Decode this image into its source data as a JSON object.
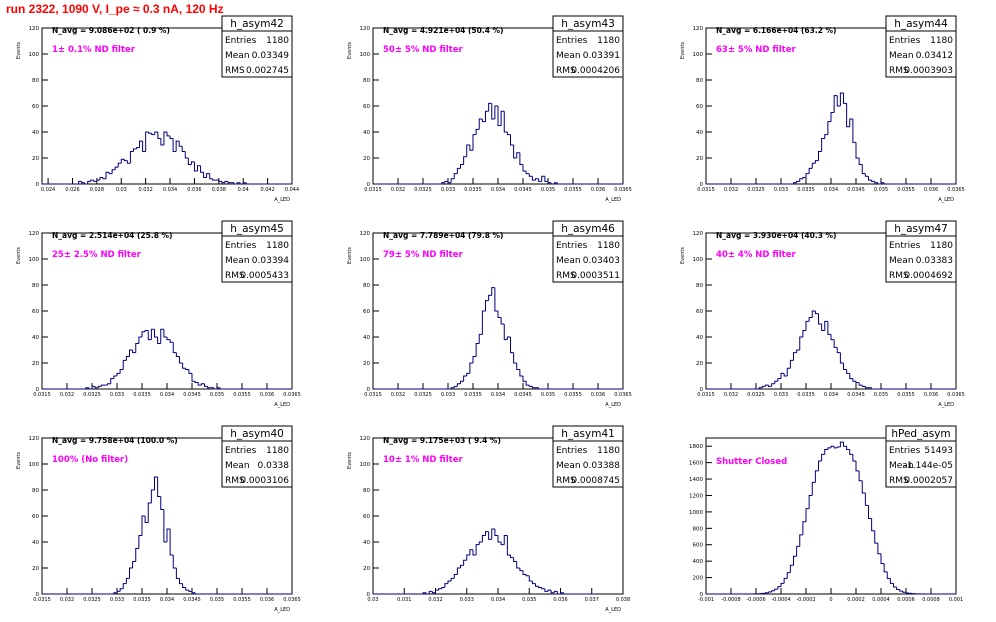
{
  "page": {
    "run_title": "run 2322,  1090 V, I_pe ≈ 0.3 nA, 120 Hz"
  },
  "colors": {
    "histogram": "#000080",
    "ylabel_annotation": "#ff00ff",
    "title": "#ff0000",
    "nd_text": "#ff00ff"
  },
  "chart_data": [
    {
      "type": "bar",
      "name": "h_asym42",
      "stats": {
        "entries_label": "Entries",
        "entries": "1180",
        "mean_label": "Mean",
        "mean": "0.03349",
        "rms_label": "RMS",
        "rms": "0.002745"
      },
      "navg": "N_avg = 9.086e+02 ( 0.9 %)",
      "filter": "1± 0.1% ND filter",
      "xlabel": "A_LED",
      "ylabel": "Events",
      "xlim": [
        0.0235,
        0.044
      ],
      "ylim": [
        0,
        120
      ],
      "xticks": [
        0.024,
        0.026,
        0.028,
        0.03,
        0.032,
        0.034,
        0.036,
        0.038,
        0.04,
        0.042,
        0.044
      ],
      "xticklabels": [
        "0.024",
        "0.026",
        "0.028",
        "0.03",
        "0.032",
        "0.034",
        "0.036",
        "0.038",
        "0.04",
        "0.042",
        "0.044"
      ],
      "yticks": [
        0,
        20,
        40,
        60,
        80,
        100,
        120
      ],
      "yticklabels": [
        "0",
        "20",
        "40",
        "60",
        "80",
        "100",
        "120"
      ],
      "bin_start": 0.0235,
      "bin_width": 0.00025,
      "values": [
        0,
        0,
        0,
        0,
        0,
        0,
        0,
        0,
        0,
        0,
        0,
        0,
        2,
        1,
        0,
        2,
        3,
        2,
        3,
        5,
        4,
        9,
        8,
        11,
        13,
        16,
        19,
        18,
        16,
        25,
        27,
        28,
        33,
        25,
        40,
        39,
        38,
        40,
        35,
        30,
        40,
        37,
        35,
        25,
        33,
        29,
        25,
        20,
        15,
        17,
        10,
        14,
        9,
        5,
        8,
        4,
        3,
        3,
        2,
        1,
        2,
        1,
        1,
        0,
        1,
        0,
        1,
        0,
        0,
        0,
        0,
        0,
        0,
        0,
        0,
        0,
        0,
        0,
        0,
        0,
        0,
        0
      ]
    },
    {
      "type": "bar",
      "name": "h_asym43",
      "stats": {
        "entries_label": "Entries",
        "entries": "1180",
        "mean_label": "Mean",
        "mean": "0.03391",
        "rms_label": "RMS",
        "rms": "0.0004206"
      },
      "navg": "N_avg = 4.921e+04 (50.4 %)",
      "filter": "50± 5% ND filter",
      "xlabel": "A_LED",
      "ylabel": "Events",
      "xlim": [
        0.0315,
        0.0365
      ],
      "ylim": [
        0,
        120
      ],
      "xticks": [
        0.0315,
        0.032,
        0.0325,
        0.033,
        0.0335,
        0.034,
        0.0345,
        0.035,
        0.0355,
        0.036,
        0.0365
      ],
      "xticklabels": [
        "0.0315",
        "0.032",
        "0.0325",
        "0.033",
        "0.0335",
        "0.034",
        "0.0345",
        "0.035",
        "0.0355",
        "0.036",
        "0.0365"
      ],
      "yticks": [
        0,
        20,
        40,
        60,
        80,
        100,
        120
      ],
      "yticklabels": [
        "0",
        "20",
        "40",
        "60",
        "80",
        "100",
        "120"
      ],
      "bin_start": 0.0315,
      "bin_width": 6.25e-05,
      "values": [
        0,
        0,
        0,
        0,
        0,
        0,
        0,
        0,
        0,
        0,
        0,
        0,
        0,
        0,
        0,
        0,
        0,
        0,
        0,
        0,
        0,
        0,
        1,
        2,
        1,
        4,
        8,
        12,
        15,
        21,
        30,
        26,
        38,
        42,
        50,
        48,
        56,
        62,
        50,
        60,
        45,
        56,
        40,
        38,
        30,
        20,
        24,
        15,
        10,
        8,
        6,
        3,
        4,
        2,
        6,
        2,
        1,
        0,
        1,
        0,
        0,
        0,
        0,
        0,
        0,
        0,
        0,
        0,
        0,
        0,
        0,
        0,
        0,
        0,
        0,
        0,
        0,
        0,
        0,
        0
      ]
    },
    {
      "type": "bar",
      "name": "h_asym44",
      "stats": {
        "entries_label": "Entries",
        "entries": "1180",
        "mean_label": "Mean",
        "mean": "0.03412",
        "rms_label": "RMS",
        "rms": "0.0003903"
      },
      "navg": "N_avg = 6.166e+04 (63.2 %)",
      "filter": "63± 5% ND filter",
      "xlabel": "A_LED",
      "ylabel": "Events",
      "xlim": [
        0.0315,
        0.0365
      ],
      "ylim": [
        0,
        120
      ],
      "xticks": [
        0.0315,
        0.032,
        0.0325,
        0.033,
        0.0335,
        0.034,
        0.0345,
        0.035,
        0.0355,
        0.036,
        0.0365
      ],
      "xticklabels": [
        "0.0315",
        "0.032",
        "0.0325",
        "0.033",
        "0.0335",
        "0.034",
        "0.0345",
        "0.035",
        "0.0355",
        "0.036",
        "0.0365"
      ],
      "yticks": [
        0,
        20,
        40,
        60,
        80,
        100,
        120
      ],
      "yticklabels": [
        "0",
        "20",
        "40",
        "60",
        "80",
        "100",
        "120"
      ],
      "bin_start": 0.0315,
      "bin_width": 6.25e-05,
      "values": [
        0,
        0,
        0,
        0,
        0,
        0,
        0,
        0,
        0,
        0,
        0,
        0,
        0,
        0,
        0,
        0,
        0,
        0,
        0,
        0,
        0,
        0,
        0,
        0,
        0,
        0,
        0,
        0,
        1,
        2,
        4,
        5,
        8,
        12,
        16,
        18,
        25,
        35,
        38,
        48,
        55,
        68,
        60,
        70,
        62,
        44,
        50,
        32,
        20,
        15,
        8,
        6,
        3,
        2,
        1,
        0,
        1,
        0,
        0,
        0,
        0,
        0,
        0,
        0,
        0,
        0,
        0,
        0,
        0,
        0,
        0,
        0,
        0,
        0,
        0,
        0,
        0,
        0,
        0,
        0
      ]
    },
    {
      "type": "bar",
      "name": "h_asym45",
      "stats": {
        "entries_label": "Entries",
        "entries": "1180",
        "mean_label": "Mean",
        "mean": "0.03394",
        "rms_label": "RMS",
        "rms": "0.0005433"
      },
      "navg": "N_avg = 2.514e+04 (25.8 %)",
      "filter": "25± 2.5% ND filter",
      "xlabel": "A_LED",
      "ylabel": "Events",
      "xlim": [
        0.0315,
        0.0365
      ],
      "ylim": [
        0,
        120
      ],
      "xticks": [
        0.0315,
        0.032,
        0.0325,
        0.033,
        0.0335,
        0.034,
        0.0345,
        0.035,
        0.0355,
        0.036,
        0.0365
      ],
      "xticklabels": [
        "0.0315",
        "0.032",
        "0.0325",
        "0.033",
        "0.0335",
        "0.034",
        "0.0345",
        "0.035",
        "0.0355",
        "0.036",
        "0.0365"
      ],
      "yticks": [
        0,
        20,
        40,
        60,
        80,
        100,
        120
      ],
      "yticklabels": [
        "0",
        "20",
        "40",
        "60",
        "80",
        "100",
        "120"
      ],
      "bin_start": 0.0315,
      "bin_width": 6.25e-05,
      "values": [
        0,
        0,
        0,
        0,
        0,
        0,
        0,
        0,
        0,
        0,
        0,
        0,
        0,
        0,
        1,
        0,
        2,
        1,
        2,
        3,
        3,
        4,
        8,
        10,
        12,
        15,
        22,
        25,
        30,
        28,
        35,
        40,
        44,
        45,
        38,
        46,
        40,
        35,
        46,
        40,
        38,
        36,
        28,
        25,
        20,
        16,
        15,
        12,
        6,
        5,
        3,
        4,
        2,
        1,
        1,
        0,
        1,
        0,
        0,
        0,
        0,
        0,
        0,
        0,
        0,
        0,
        0,
        0,
        0,
        0,
        0,
        0,
        0,
        0,
        0,
        0,
        0,
        0,
        0,
        0
      ]
    },
    {
      "type": "bar",
      "name": "h_asym46",
      "stats": {
        "entries_label": "Entries",
        "entries": "1180",
        "mean_label": "Mean",
        "mean": "0.03403",
        "rms_label": "RMS",
        "rms": "0.0003511"
      },
      "navg": "N_avg = 7.789e+04 (79.8 %)",
      "filter": "79± 5% ND filter",
      "xlabel": "A_LED",
      "ylabel": "Events",
      "xlim": [
        0.0315,
        0.0365
      ],
      "ylim": [
        0,
        120
      ],
      "xticks": [
        0.0315,
        0.032,
        0.0325,
        0.033,
        0.0335,
        0.034,
        0.0345,
        0.035,
        0.0355,
        0.036,
        0.0365
      ],
      "xticklabels": [
        "0.0315",
        "0.032",
        "0.0325",
        "0.033",
        "0.0335",
        "0.034",
        "0.0345",
        "0.035",
        "0.0355",
        "0.036",
        "0.0365"
      ],
      "yticks": [
        0,
        20,
        40,
        60,
        80,
        100,
        120
      ],
      "yticklabels": [
        "0",
        "20",
        "40",
        "60",
        "80",
        "100",
        "120"
      ],
      "bin_start": 0.0315,
      "bin_width": 6.25e-05,
      "values": [
        0,
        0,
        0,
        0,
        0,
        0,
        0,
        0,
        0,
        0,
        0,
        0,
        0,
        0,
        0,
        0,
        0,
        0,
        0,
        0,
        0,
        0,
        0,
        0,
        0,
        1,
        2,
        4,
        6,
        10,
        12,
        20,
        25,
        35,
        42,
        60,
        68,
        72,
        78,
        60,
        55,
        50,
        38,
        40,
        28,
        20,
        15,
        10,
        6,
        3,
        2,
        1,
        1,
        0,
        0,
        0,
        0,
        0,
        0,
        0,
        0,
        0,
        0,
        0,
        0,
        0,
        0,
        0,
        0,
        0,
        0,
        0,
        0,
        0,
        0,
        0,
        0,
        0,
        0,
        0
      ]
    },
    {
      "type": "bar",
      "name": "h_asym47",
      "stats": {
        "entries_label": "Entries",
        "entries": "1180",
        "mean_label": "Mean",
        "mean": "0.03383",
        "rms_label": "RMS",
        "rms": "0.0004692"
      },
      "navg": "N_avg = 3.930e+04 (40.3 %)",
      "filter": "40± 4% ND filter",
      "xlabel": "A_LED",
      "ylabel": "Events",
      "xlim": [
        0.0315,
        0.0365
      ],
      "ylim": [
        0,
        120
      ],
      "xticks": [
        0.0315,
        0.032,
        0.0325,
        0.033,
        0.0335,
        0.034,
        0.0345,
        0.035,
        0.0355,
        0.036,
        0.0365
      ],
      "xticklabels": [
        "0.0315",
        "0.032",
        "0.0325",
        "0.033",
        "0.0335",
        "0.034",
        "0.0345",
        "0.035",
        "0.0355",
        "0.036",
        "0.0365"
      ],
      "yticks": [
        0,
        20,
        40,
        60,
        80,
        100,
        120
      ],
      "yticklabels": [
        "0",
        "20",
        "40",
        "60",
        "80",
        "100",
        "120"
      ],
      "bin_start": 0.0315,
      "bin_width": 6.25e-05,
      "values": [
        0,
        0,
        0,
        0,
        0,
        0,
        0,
        0,
        0,
        0,
        0,
        0,
        0,
        0,
        0,
        0,
        0,
        1,
        2,
        3,
        2,
        4,
        6,
        8,
        12,
        10,
        16,
        22,
        28,
        30,
        40,
        45,
        52,
        55,
        60,
        58,
        50,
        45,
        52,
        42,
        38,
        32,
        28,
        20,
        15,
        12,
        8,
        6,
        5,
        3,
        2,
        1,
        1,
        0,
        0,
        0,
        0,
        0,
        0,
        0,
        0,
        0,
        0,
        0,
        0,
        0,
        0,
        0,
        0,
        0,
        0,
        0,
        0,
        0,
        0,
        0,
        0,
        0,
        0,
        0
      ]
    },
    {
      "type": "bar",
      "name": "h_asym40",
      "stats": {
        "entries_label": "Entries",
        "entries": "1180",
        "mean_label": "Mean",
        "mean": "0.0338",
        "rms_label": "RMS",
        "rms": "0.0003106"
      },
      "navg": "N_avg = 9.758e+04 (100.0 %)",
      "filter": "100% (No filter)",
      "xlabel": "A_LED",
      "ylabel": "Events",
      "xlim": [
        0.0315,
        0.0365
      ],
      "ylim": [
        0,
        120
      ],
      "xticks": [
        0.0315,
        0.032,
        0.0325,
        0.033,
        0.0335,
        0.034,
        0.0345,
        0.035,
        0.0355,
        0.036,
        0.0365
      ],
      "xticklabels": [
        "0.0315",
        "0.032",
        "0.0325",
        "0.033",
        "0.0335",
        "0.034",
        "0.0345",
        "0.035",
        "0.0355",
        "0.036",
        "0.0365"
      ],
      "yticks": [
        0,
        20,
        40,
        60,
        80,
        100,
        120
      ],
      "yticklabels": [
        "0",
        "20",
        "40",
        "60",
        "80",
        "100",
        "120"
      ],
      "bin_start": 0.0315,
      "bin_width": 6.25e-05,
      "values": [
        0,
        0,
        0,
        0,
        0,
        0,
        0,
        0,
        0,
        0,
        0,
        0,
        0,
        0,
        0,
        0,
        0,
        0,
        0,
        0,
        0,
        0,
        0,
        1,
        2,
        4,
        8,
        12,
        20,
        25,
        35,
        45,
        60,
        55,
        70,
        80,
        90,
        75,
        65,
        40,
        50,
        30,
        20,
        12,
        8,
        5,
        3,
        2,
        1,
        0,
        0,
        0,
        0,
        0,
        0,
        0,
        0,
        0,
        0,
        0,
        0,
        0,
        0,
        0,
        0,
        0,
        0,
        0,
        0,
        0,
        0,
        0,
        0,
        0,
        0,
        0,
        0,
        0,
        0,
        0
      ]
    },
    {
      "type": "bar",
      "name": "h_asym41",
      "stats": {
        "entries_label": "Entries",
        "entries": "1180",
        "mean_label": "Mean",
        "mean": "0.03388",
        "rms_label": "RMS",
        "rms": "0.0008745"
      },
      "navg": "N_avg = 9.175e+03 ( 9.4 %)",
      "filter": "10± 1% ND filter",
      "xlabel": "A_LED",
      "ylabel": "Events",
      "xlim": [
        0.03,
        0.038
      ],
      "ylim": [
        0,
        120
      ],
      "xticks": [
        0.03,
        0.031,
        0.032,
        0.033,
        0.034,
        0.035,
        0.036,
        0.037,
        0.038
      ],
      "xticklabels": [
        "0.03",
        "0.031",
        "0.032",
        "0.033",
        "0.034",
        "0.035",
        "0.036",
        "0.037",
        "0.038"
      ],
      "yticks": [
        0,
        20,
        40,
        60,
        80,
        100,
        120
      ],
      "yticklabels": [
        "0",
        "20",
        "40",
        "60",
        "80",
        "100",
        "120"
      ],
      "bin_start": 0.03,
      "bin_width": 0.0001,
      "values": [
        0,
        0,
        0,
        0,
        0,
        0,
        0,
        0,
        0,
        0,
        0,
        0,
        0,
        0,
        0,
        0,
        1,
        0,
        2,
        1,
        3,
        4,
        5,
        8,
        10,
        12,
        15,
        20,
        22,
        26,
        30,
        34,
        30,
        38,
        40,
        45,
        48,
        42,
        50,
        45,
        40,
        38,
        45,
        30,
        28,
        25,
        20,
        18,
        15,
        14,
        10,
        8,
        6,
        5,
        4,
        2,
        3,
        1,
        2,
        0,
        1,
        0,
        0,
        0,
        0,
        0,
        0,
        0,
        0,
        0,
        0
      ]
    },
    {
      "type": "bar",
      "name": "hPed_asym",
      "stats": {
        "entries_label": "Entries",
        "entries": "51493",
        "mean_label": "Mean",
        "mean": "-1.144e-05",
        "rms_label": "RMS",
        "rms": "0.0002057"
      },
      "navg": "",
      "filter": "Shutter Closed",
      "xlabel": "",
      "ylabel": "",
      "xlim": [
        -0.001,
        0.001
      ],
      "ylim": [
        0,
        1900
      ],
      "xticks": [
        -0.001,
        -0.0008,
        -0.0006,
        -0.0004,
        -0.0002,
        0,
        0.0002,
        0.0004,
        0.0006,
        0.0008,
        0.001
      ],
      "xticklabels": [
        "-0.001",
        "-0.0008",
        "-0.0006",
        "-0.0004",
        "-0.0002",
        "0",
        "0.0002",
        "0.0004",
        "0.0006",
        "0.0008",
        "0.001"
      ],
      "yticks": [
        0,
        200,
        400,
        600,
        800,
        1000,
        1200,
        1400,
        1600,
        1800
      ],
      "yticklabels": [
        "0",
        "200",
        "400",
        "600",
        "800",
        "1000",
        "1200",
        "1400",
        "1600",
        "1800"
      ],
      "bin_start": -0.001,
      "bin_width": 2.5e-05,
      "values": [
        0,
        0,
        0,
        0,
        0,
        0,
        0,
        0,
        0,
        0,
        0,
        0,
        0,
        0,
        0,
        1,
        2,
        4,
        8,
        15,
        25,
        40,
        60,
        90,
        130,
        190,
        260,
        350,
        460,
        580,
        720,
        880,
        1040,
        1200,
        1360,
        1500,
        1620,
        1700,
        1760,
        1780,
        1800,
        1780,
        1790,
        1850,
        1800,
        1760,
        1700,
        1620,
        1500,
        1380,
        1230,
        1080,
        920,
        770,
        620,
        490,
        370,
        270,
        190,
        130,
        85,
        55,
        35,
        22,
        12,
        7,
        4,
        2,
        1,
        0,
        0,
        0,
        0,
        0,
        0,
        0,
        0,
        0,
        0,
        0,
        0
      ]
    }
  ]
}
